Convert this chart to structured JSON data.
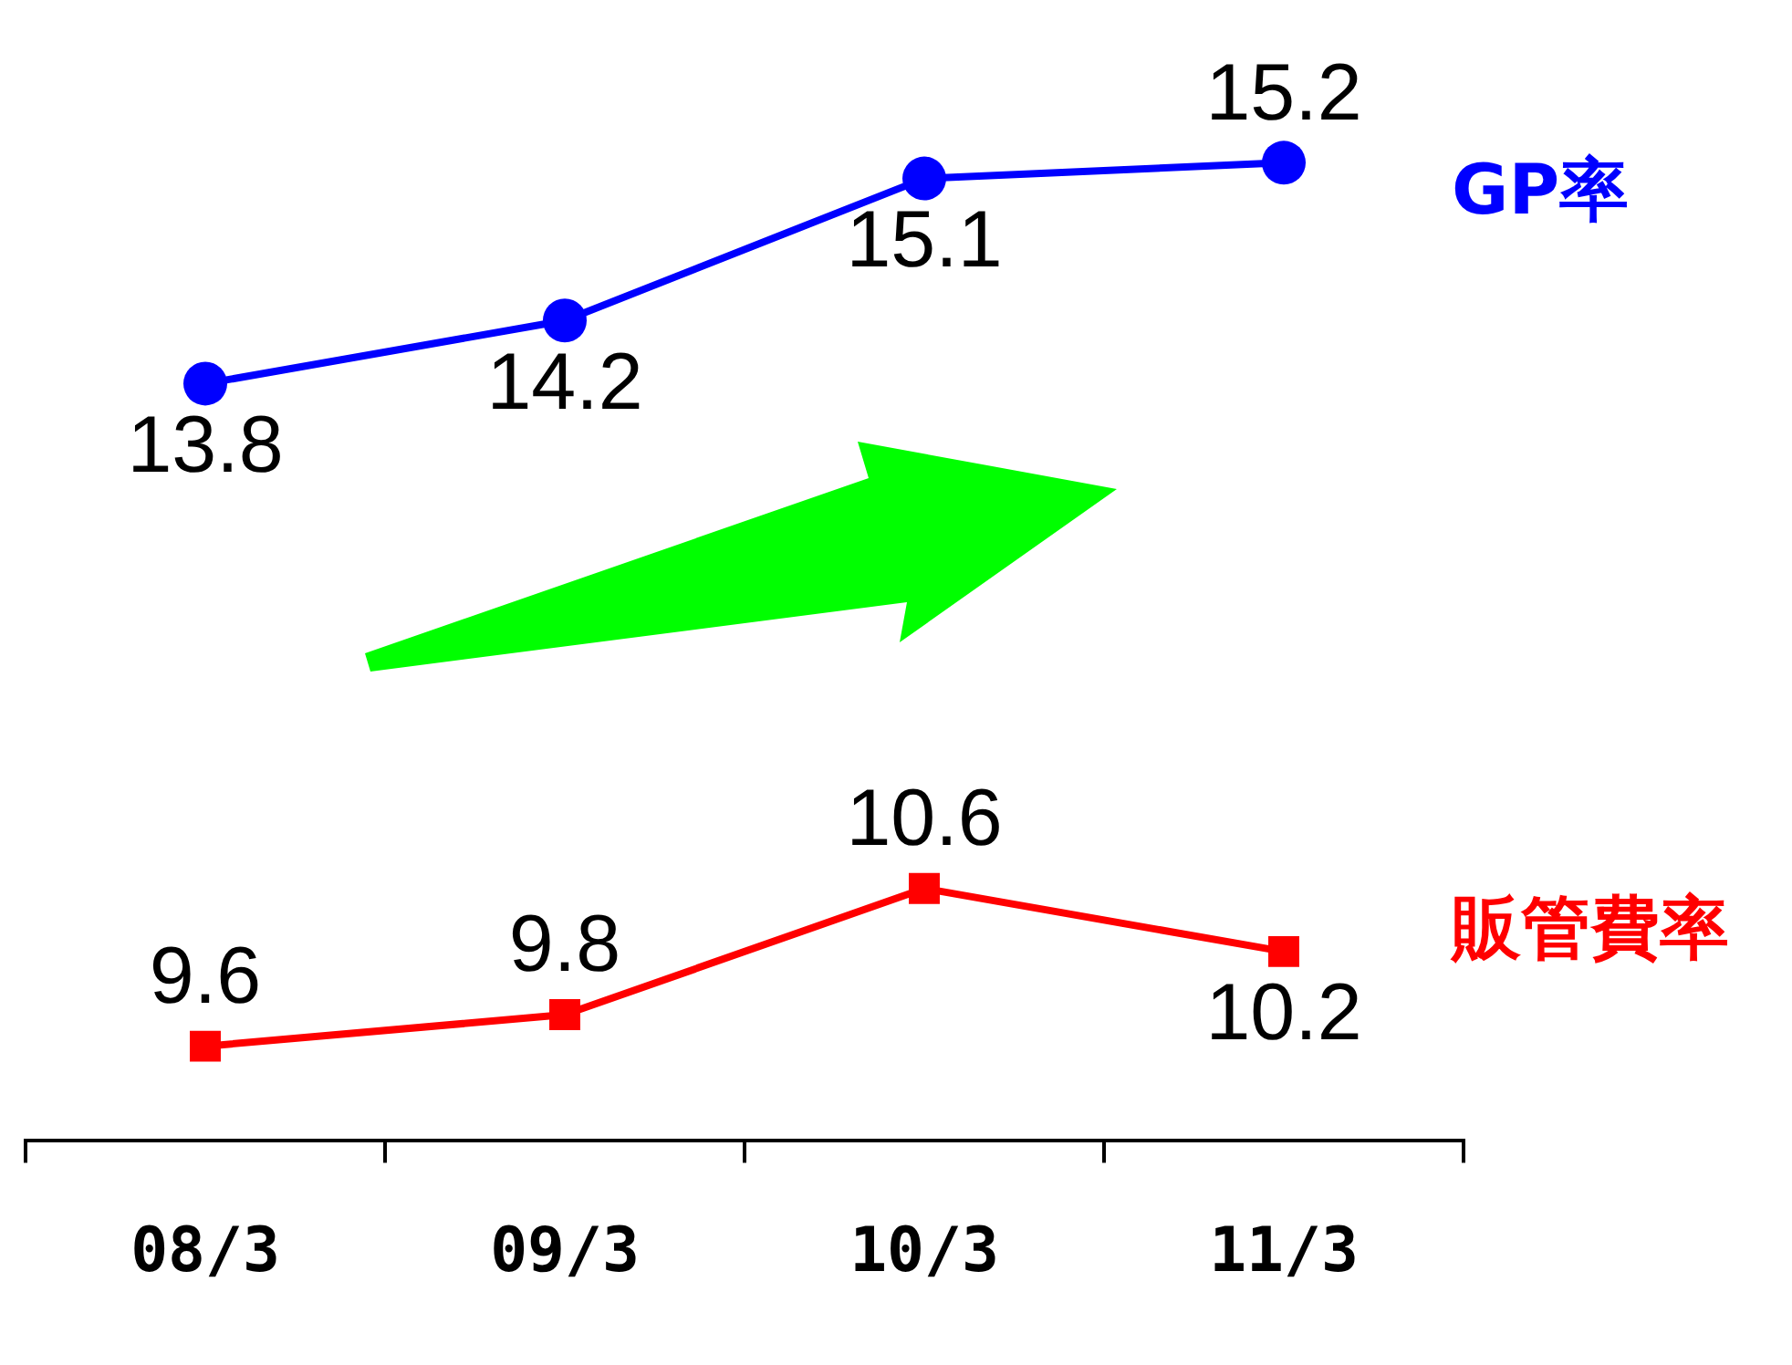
{
  "chart_data": {
    "type": "line",
    "categories": [
      "08/3",
      "09/3",
      "10/3",
      "11/3"
    ],
    "series": [
      {
        "name": "GP率",
        "color": "#0000ff",
        "marker": "circle",
        "values": [
          13.8,
          14.2,
          15.1,
          15.2
        ]
      },
      {
        "name": "販管費率",
        "color": "#ff0000",
        "marker": "square",
        "values": [
          9.6,
          9.8,
          10.6,
          10.2
        ]
      }
    ],
    "tick_labels": "x",
    "data_labels": true,
    "legend": false,
    "grid": false
  }
}
